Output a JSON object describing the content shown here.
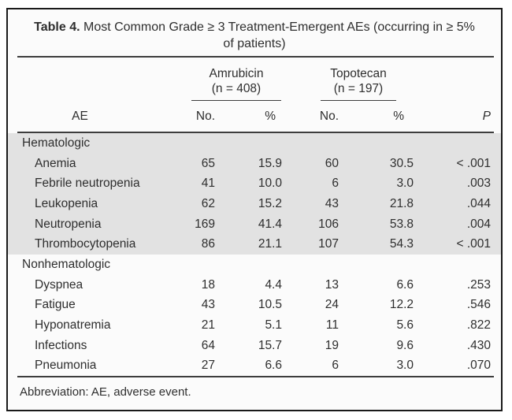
{
  "table": {
    "title": {
      "label": "Table 4.",
      "text": "Most Common Grade ≥ 3 Treatment-Emergent AEs (occurring in ≥ 5% of patients)"
    },
    "column_groups": [
      {
        "name": "Amrubicin",
        "n_label": "(n = 408)"
      },
      {
        "name": "Topotecan",
        "n_label": "(n = 197)"
      }
    ],
    "column_headers": {
      "ae": "AE",
      "no": "No.",
      "pct": "%",
      "p": "P"
    },
    "sections": [
      {
        "label": "Hematologic",
        "shaded": true,
        "rows": [
          {
            "ae": "Anemia",
            "no1": "65",
            "pct1": "15.9",
            "no2": "60",
            "pct2": "30.5",
            "p": "< .001"
          },
          {
            "ae": "Febrile neutropenia",
            "no1": "41",
            "pct1": "10.0",
            "no2": "6",
            "pct2": "3.0",
            "p": ".003"
          },
          {
            "ae": "Leukopenia",
            "no1": "62",
            "pct1": "15.2",
            "no2": "43",
            "pct2": "21.8",
            "p": ".044"
          },
          {
            "ae": "Neutropenia",
            "no1": "169",
            "pct1": "41.4",
            "no2": "106",
            "pct2": "53.8",
            "p": ".004"
          },
          {
            "ae": "Thrombocytopenia",
            "no1": "86",
            "pct1": "21.1",
            "no2": "107",
            "pct2": "54.3",
            "p": "< .001"
          }
        ]
      },
      {
        "label": "Nonhematologic",
        "shaded": false,
        "rows": [
          {
            "ae": "Dyspnea",
            "no1": "18",
            "pct1": "4.4",
            "no2": "13",
            "pct2": "6.6",
            "p": ".253"
          },
          {
            "ae": "Fatigue",
            "no1": "43",
            "pct1": "10.5",
            "no2": "24",
            "pct2": "12.2",
            "p": ".546"
          },
          {
            "ae": "Hyponatremia",
            "no1": "21",
            "pct1": "5.1",
            "no2": "11",
            "pct2": "5.6",
            "p": ".822"
          },
          {
            "ae": "Infections",
            "no1": "64",
            "pct1": "15.7",
            "no2": "19",
            "pct2": "9.6",
            "p": ".430"
          },
          {
            "ae": "Pneumonia",
            "no1": "27",
            "pct1": "6.6",
            "no2": "6",
            "pct2": "3.0",
            "p": ".070"
          }
        ]
      }
    ],
    "footnote": "Abbreviation: AE, adverse event.",
    "colors": {
      "shaded_section_bg": "#e2e2e2",
      "border": "#1a1a1a",
      "text": "#2e2e2e"
    }
  }
}
